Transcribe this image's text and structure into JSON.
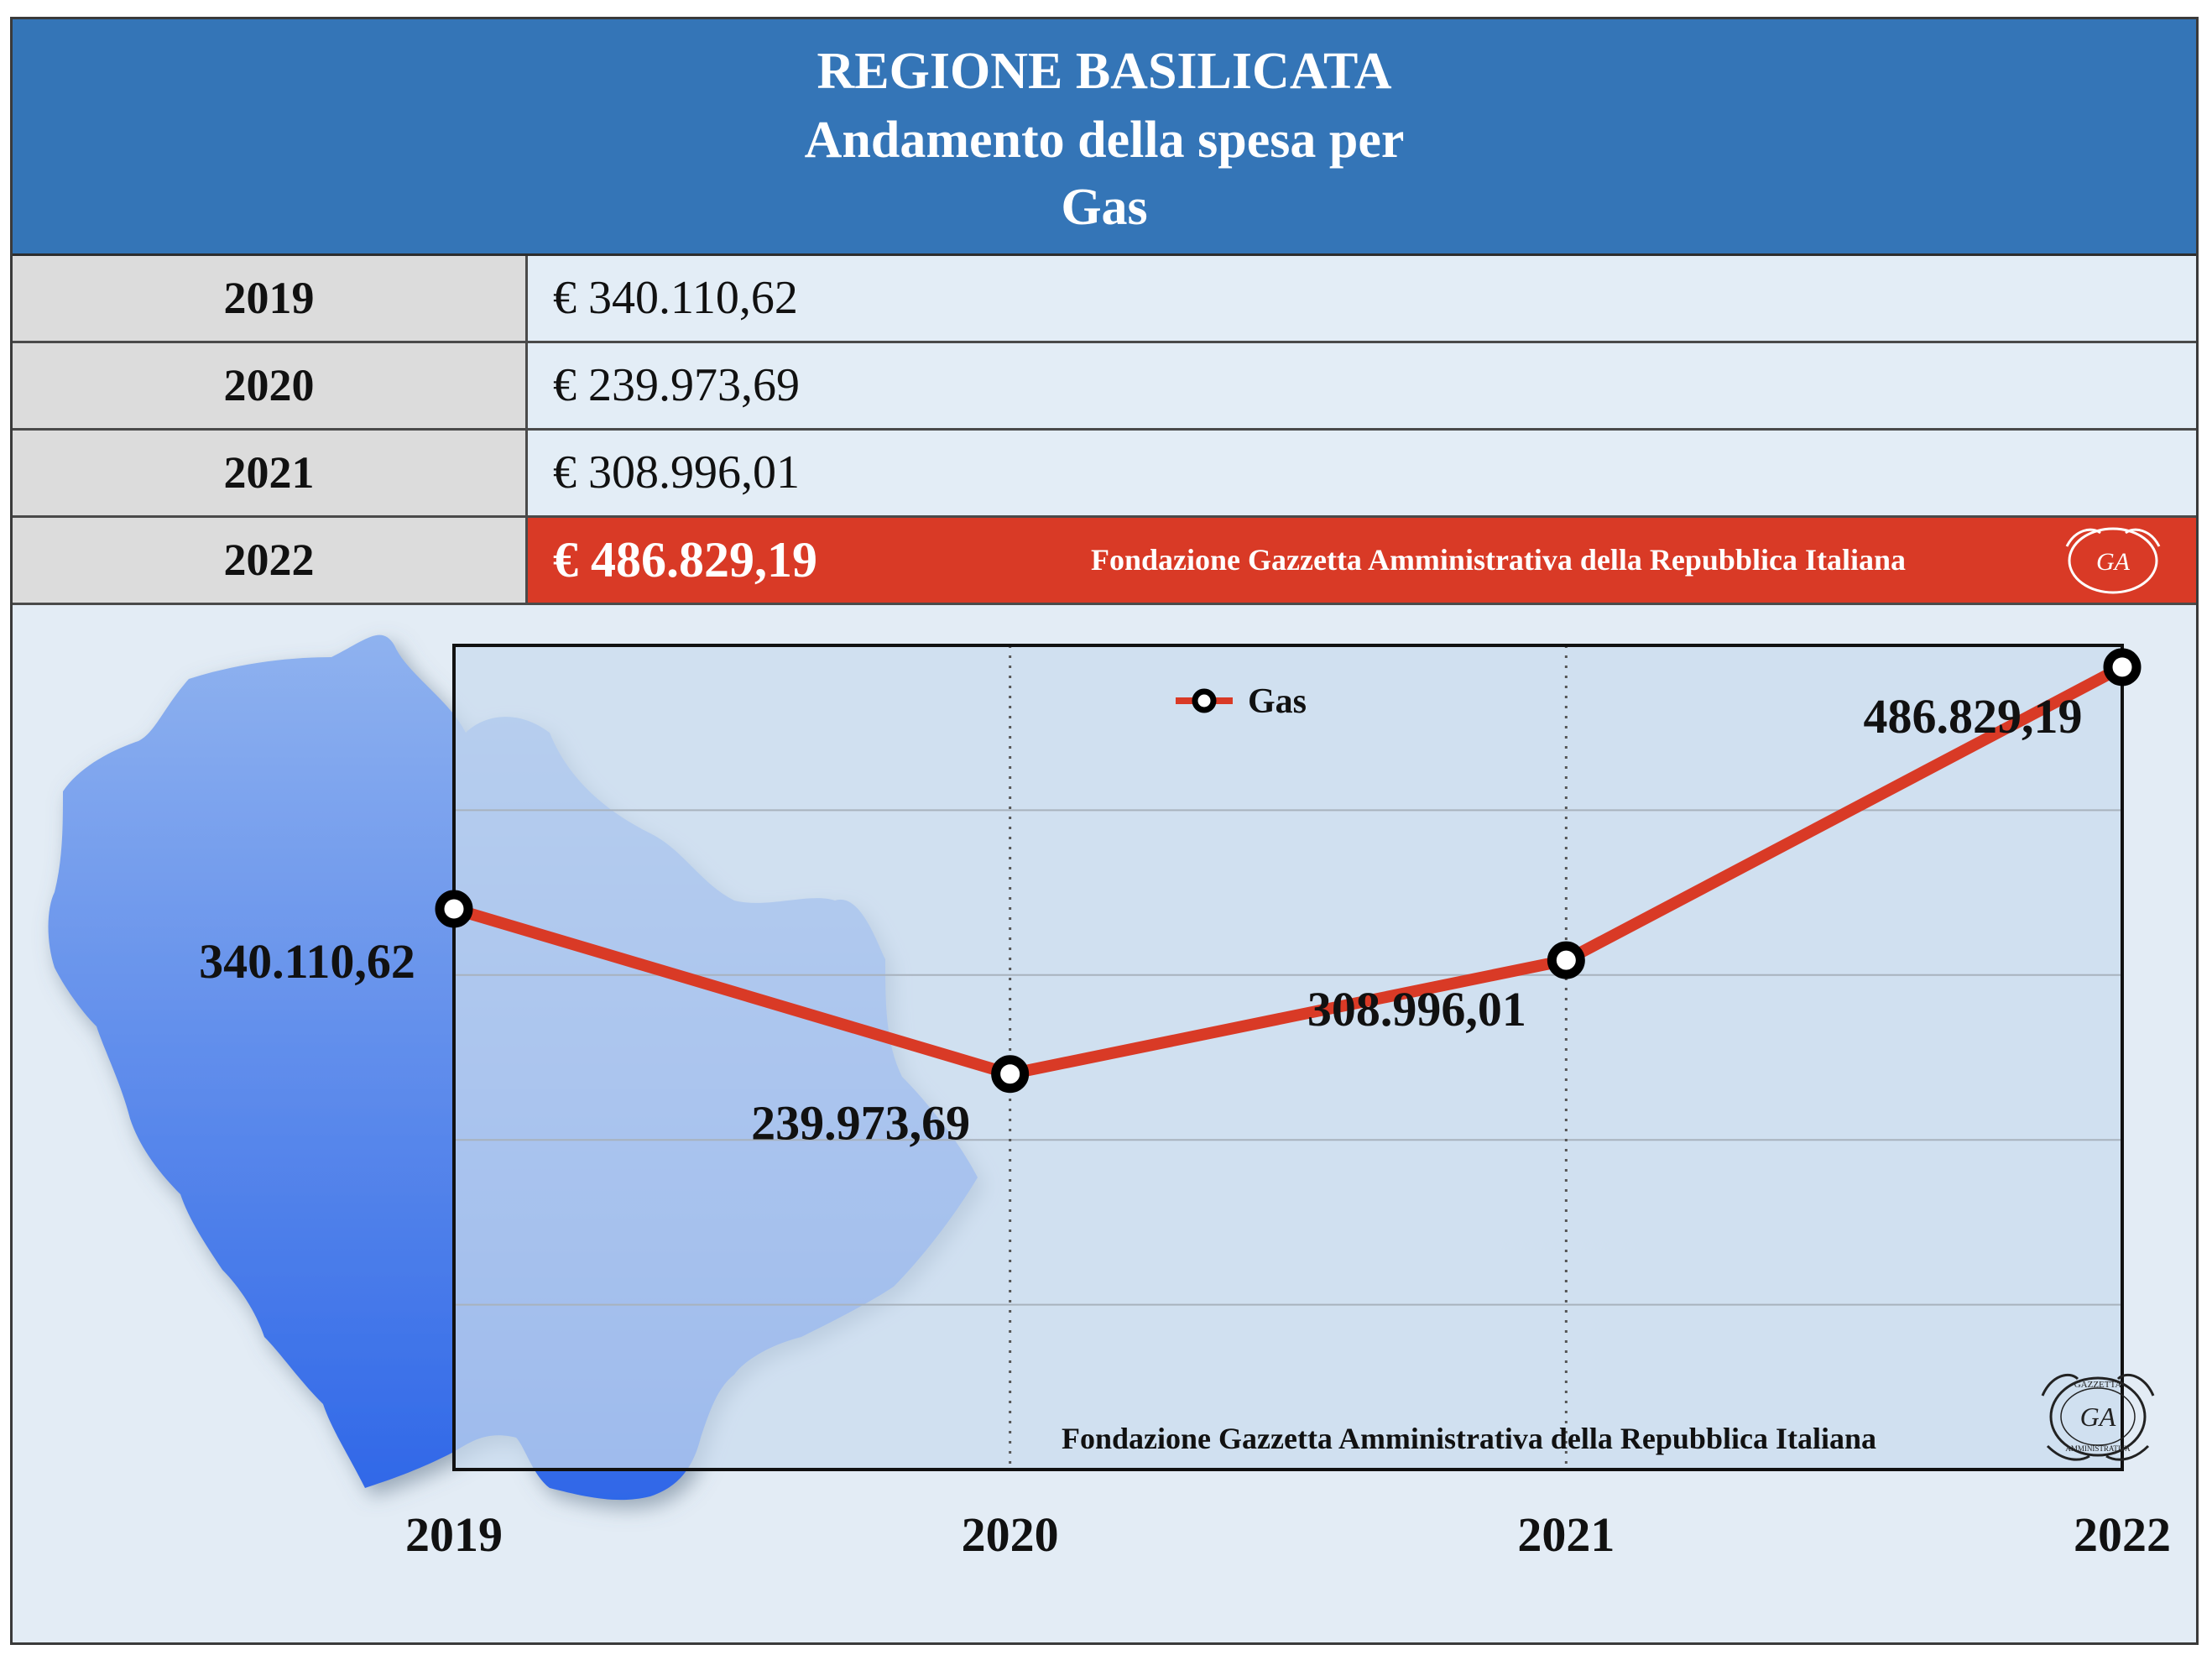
{
  "header": {
    "line1": "REGIONE BASILICATA",
    "line2": "Andamento della spesa per",
    "line3": "Gas"
  },
  "table": {
    "rows": [
      {
        "year": "2019",
        "value": "€ 340.110,62"
      },
      {
        "year": "2020",
        "value": "€ 239.973,69"
      },
      {
        "year": "2021",
        "value": "€ 308.996,01"
      },
      {
        "year": "2022",
        "value": "€ 486.829,19"
      }
    ],
    "highlight_row": 3
  },
  "footer_text": "Fondazione Gazzetta Amministrativa della Repubblica Italiana",
  "seal": {
    "letters": "GA",
    "top_text": "GAZZETTA",
    "bottom_text": "AMMINISTRATIVA"
  },
  "colors": {
    "header_bg": "#3475b7",
    "highlight_bg": "#d93a26",
    "line": "#d93a26",
    "map": "#3a74e6",
    "plot_bg": "#c9dbee"
  },
  "chart_data": {
    "type": "line",
    "categories": [
      "2019",
      "2020",
      "2021",
      "2022"
    ],
    "series": [
      {
        "name": "Gas",
        "values": [
          340110.62,
          239973.69,
          308996.01,
          486829.19
        ]
      }
    ],
    "data_labels": [
      "340.110,62",
      "239.973,69",
      "308.996,01",
      "486.829,19"
    ],
    "ylim": [
      0,
      500000
    ],
    "grid": true,
    "legend": "top-center"
  }
}
